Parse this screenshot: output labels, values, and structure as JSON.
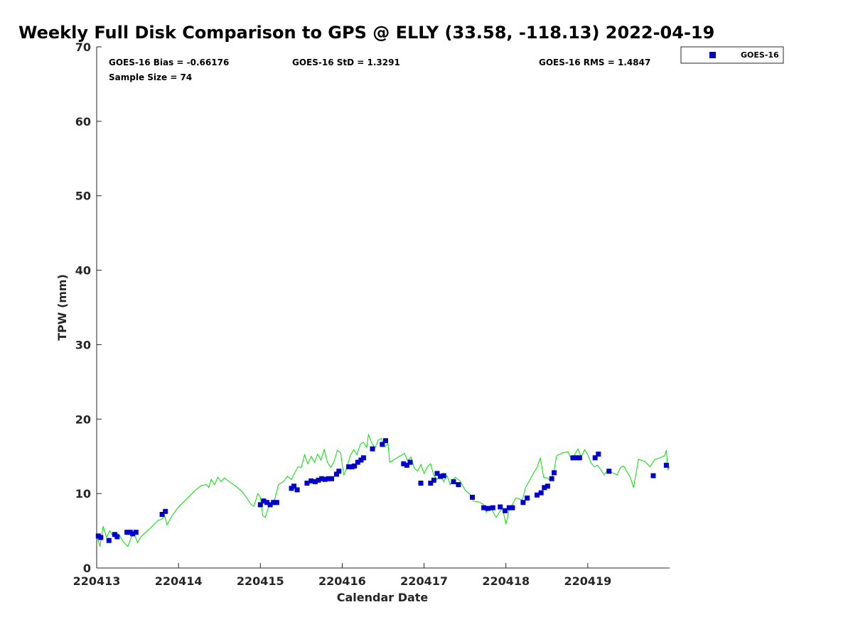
{
  "chart_data": {
    "type": "scatter",
    "title": "Weekly Full Disk Comparison to GPS @ ELLY (33.58, -118.13) 2022-04-19",
    "xlabel": "Calendar Date",
    "ylabel": "TPW (mm)",
    "xlim": [
      0,
      7
    ],
    "ylim": [
      0,
      70
    ],
    "x_ticks": [
      {
        "value": 0,
        "label": "220413"
      },
      {
        "value": 1,
        "label": "220414"
      },
      {
        "value": 2,
        "label": "220415"
      },
      {
        "value": 3,
        "label": "220416"
      },
      {
        "value": 4,
        "label": "220417"
      },
      {
        "value": 5,
        "label": "220418"
      },
      {
        "value": 6,
        "label": "220419"
      }
    ],
    "y_ticks": [
      0,
      10,
      20,
      30,
      40,
      50,
      60,
      70
    ],
    "grid": false,
    "legend_position": "top-right",
    "stats": {
      "bias": "GOES-16 Bias = -0.66176",
      "std": "GOES-16 StD = 1.3291",
      "rms": "GOES-16 RMS = 1.4847",
      "sample": "Sample Size = 74"
    },
    "series": [
      {
        "name": "GOES-16",
        "kind": "markers",
        "color": "#0000cc",
        "points": [
          [
            0.02,
            4.3
          ],
          [
            0.05,
            4.1
          ],
          [
            0.15,
            3.7
          ],
          [
            0.22,
            4.5
          ],
          [
            0.25,
            4.2
          ],
          [
            0.37,
            4.8
          ],
          [
            0.41,
            4.8
          ],
          [
            0.44,
            4.6
          ],
          [
            0.48,
            4.8
          ],
          [
            0.8,
            7.2
          ],
          [
            0.84,
            7.6
          ],
          [
            2.0,
            8.5
          ],
          [
            2.04,
            9.0
          ],
          [
            2.08,
            8.8
          ],
          [
            2.12,
            8.5
          ],
          [
            2.16,
            8.8
          ],
          [
            2.2,
            8.8
          ],
          [
            2.38,
            10.7
          ],
          [
            2.41,
            11.0
          ],
          [
            2.45,
            10.5
          ],
          [
            2.57,
            11.4
          ],
          [
            2.62,
            11.7
          ],
          [
            2.67,
            11.6
          ],
          [
            2.71,
            11.8
          ],
          [
            2.75,
            12.0
          ],
          [
            2.79,
            11.9
          ],
          [
            2.83,
            12.0
          ],
          [
            2.87,
            12.0
          ],
          [
            2.93,
            12.6
          ],
          [
            2.96,
            13.0
          ],
          [
            3.08,
            13.6
          ],
          [
            3.12,
            13.6
          ],
          [
            3.15,
            13.7
          ],
          [
            3.19,
            14.2
          ],
          [
            3.23,
            14.5
          ],
          [
            3.26,
            14.8
          ],
          [
            3.37,
            16.0
          ],
          [
            3.49,
            16.6
          ],
          [
            3.53,
            17.1
          ],
          [
            3.75,
            14.0
          ],
          [
            3.79,
            13.8
          ],
          [
            3.83,
            14.2
          ],
          [
            3.96,
            11.4
          ],
          [
            4.08,
            11.4
          ],
          [
            4.12,
            11.8
          ],
          [
            4.16,
            12.7
          ],
          [
            4.2,
            12.3
          ],
          [
            4.24,
            12.4
          ],
          [
            4.36,
            11.6
          ],
          [
            4.42,
            11.2
          ],
          [
            4.59,
            9.5
          ],
          [
            4.73,
            8.1
          ],
          [
            4.78,
            8.0
          ],
          [
            4.84,
            8.1
          ],
          [
            4.93,
            8.2
          ],
          [
            4.99,
            7.7
          ],
          [
            5.04,
            8.1
          ],
          [
            5.08,
            8.1
          ],
          [
            5.21,
            8.8
          ],
          [
            5.26,
            9.4
          ],
          [
            5.38,
            9.8
          ],
          [
            5.43,
            10.1
          ],
          [
            5.47,
            10.8
          ],
          [
            5.51,
            11.0
          ],
          [
            5.56,
            12.0
          ],
          [
            5.59,
            12.8
          ],
          [
            5.82,
            14.8
          ],
          [
            5.86,
            14.8
          ],
          [
            5.9,
            14.8
          ],
          [
            6.09,
            14.8
          ],
          [
            6.13,
            15.3
          ],
          [
            6.26,
            13.0
          ],
          [
            6.8,
            12.4
          ],
          [
            6.96,
            13.8
          ]
        ]
      },
      {
        "name": "",
        "kind": "line",
        "color": "#00e000",
        "points": [
          [
            0.0,
            4.4
          ],
          [
            0.04,
            2.9
          ],
          [
            0.08,
            5.6
          ],
          [
            0.12,
            4.1
          ],
          [
            0.16,
            5.0
          ],
          [
            0.2,
            4.3
          ],
          [
            0.24,
            4.8
          ],
          [
            0.28,
            4.4
          ],
          [
            0.32,
            3.6
          ],
          [
            0.38,
            2.9
          ],
          [
            0.42,
            4.1
          ],
          [
            0.46,
            4.5
          ],
          [
            0.5,
            3.4
          ],
          [
            0.54,
            4.2
          ],
          [
            0.66,
            5.4
          ],
          [
            0.75,
            6.4
          ],
          [
            0.8,
            6.6
          ],
          [
            0.83,
            7.0
          ],
          [
            0.86,
            5.8
          ],
          [
            0.92,
            7.0
          ],
          [
            1.0,
            8.2
          ],
          [
            1.1,
            9.3
          ],
          [
            1.2,
            10.4
          ],
          [
            1.28,
            11.1
          ],
          [
            1.34,
            11.2
          ],
          [
            1.37,
            10.8
          ],
          [
            1.4,
            11.9
          ],
          [
            1.44,
            11.2
          ],
          [
            1.48,
            12.2
          ],
          [
            1.52,
            11.6
          ],
          [
            1.56,
            12.1
          ],
          [
            1.62,
            11.6
          ],
          [
            1.7,
            11.0
          ],
          [
            1.78,
            10.2
          ],
          [
            1.84,
            9.3
          ],
          [
            1.88,
            8.6
          ],
          [
            1.92,
            8.3
          ],
          [
            1.97,
            10.0
          ],
          [
            2.0,
            9.5
          ],
          [
            2.03,
            7.0
          ],
          [
            2.06,
            6.8
          ],
          [
            2.1,
            8.2
          ],
          [
            2.14,
            8.6
          ],
          [
            2.18,
            9.4
          ],
          [
            2.22,
            11.2
          ],
          [
            2.28,
            11.6
          ],
          [
            2.33,
            12.3
          ],
          [
            2.38,
            11.9
          ],
          [
            2.42,
            12.8
          ],
          [
            2.46,
            13.6
          ],
          [
            2.5,
            13.5
          ],
          [
            2.54,
            15.2
          ],
          [
            2.58,
            14.0
          ],
          [
            2.62,
            15.0
          ],
          [
            2.66,
            14.2
          ],
          [
            2.7,
            15.3
          ],
          [
            2.74,
            14.5
          ],
          [
            2.78,
            15.9
          ],
          [
            2.82,
            14.2
          ],
          [
            2.86,
            13.5
          ],
          [
            2.9,
            14.3
          ],
          [
            2.94,
            15.8
          ],
          [
            2.98,
            15.5
          ],
          [
            3.02,
            12.5
          ],
          [
            3.06,
            13.6
          ],
          [
            3.1,
            15.1
          ],
          [
            3.14,
            15.9
          ],
          [
            3.18,
            15.2
          ],
          [
            3.22,
            16.6
          ],
          [
            3.26,
            16.9
          ],
          [
            3.3,
            16.2
          ],
          [
            3.32,
            17.9
          ],
          [
            3.36,
            16.8
          ],
          [
            3.4,
            16.1
          ],
          [
            3.44,
            17.2
          ],
          [
            3.48,
            17.4
          ],
          [
            3.52,
            16.3
          ],
          [
            3.56,
            16.7
          ],
          [
            3.58,
            14.2
          ],
          [
            3.64,
            14.6
          ],
          [
            3.7,
            15.0
          ],
          [
            3.76,
            15.4
          ],
          [
            3.8,
            14.4
          ],
          [
            3.84,
            14.9
          ],
          [
            3.88,
            13.4
          ],
          [
            3.92,
            13.0
          ],
          [
            3.96,
            13.9
          ],
          [
            4.0,
            12.7
          ],
          [
            4.04,
            13.6
          ],
          [
            4.08,
            14.0
          ],
          [
            4.12,
            12.4
          ],
          [
            4.16,
            11.9
          ],
          [
            4.2,
            12.6
          ],
          [
            4.24,
            11.6
          ],
          [
            4.28,
            12.4
          ],
          [
            4.32,
            11.2
          ],
          [
            4.38,
            12.2
          ],
          [
            4.44,
            11.7
          ],
          [
            4.5,
            10.5
          ],
          [
            4.56,
            9.9
          ],
          [
            4.6,
            9.0
          ],
          [
            4.66,
            8.9
          ],
          [
            4.72,
            8.6
          ],
          [
            4.76,
            7.5
          ],
          [
            4.8,
            8.3
          ],
          [
            4.84,
            7.6
          ],
          [
            4.88,
            6.8
          ],
          [
            4.92,
            7.5
          ],
          [
            4.96,
            8.0
          ],
          [
            5.0,
            5.9
          ],
          [
            5.04,
            7.8
          ],
          [
            5.08,
            8.5
          ],
          [
            5.12,
            9.4
          ],
          [
            5.16,
            9.3
          ],
          [
            5.2,
            9.1
          ],
          [
            5.24,
            10.8
          ],
          [
            5.3,
            12.0
          ],
          [
            5.34,
            12.8
          ],
          [
            5.38,
            13.5
          ],
          [
            5.42,
            14.8
          ],
          [
            5.46,
            12.2
          ],
          [
            5.5,
            12.1
          ],
          [
            5.54,
            11.8
          ],
          [
            5.58,
            12.6
          ],
          [
            5.62,
            15.1
          ],
          [
            5.7,
            15.5
          ],
          [
            5.76,
            15.6
          ],
          [
            5.8,
            14.5
          ],
          [
            5.84,
            15.2
          ],
          [
            5.88,
            16.0
          ],
          [
            5.92,
            14.9
          ],
          [
            5.96,
            15.9
          ],
          [
            6.0,
            15.2
          ],
          [
            6.04,
            14.1
          ],
          [
            6.08,
            13.6
          ],
          [
            6.12,
            13.8
          ],
          [
            6.16,
            13.2
          ],
          [
            6.2,
            12.5
          ],
          [
            6.24,
            13.1
          ],
          [
            6.3,
            12.8
          ],
          [
            6.36,
            12.5
          ],
          [
            6.4,
            13.5
          ],
          [
            6.44,
            13.7
          ],
          [
            6.48,
            12.9
          ],
          [
            6.52,
            12.2
          ],
          [
            6.56,
            10.8
          ],
          [
            6.62,
            14.6
          ],
          [
            6.7,
            14.3
          ],
          [
            6.76,
            13.6
          ],
          [
            6.82,
            14.6
          ],
          [
            6.88,
            14.8
          ],
          [
            6.94,
            15.1
          ],
          [
            6.96,
            15.8
          ],
          [
            6.98,
            13.2
          ],
          [
            7.0,
            13.6
          ]
        ]
      }
    ]
  }
}
